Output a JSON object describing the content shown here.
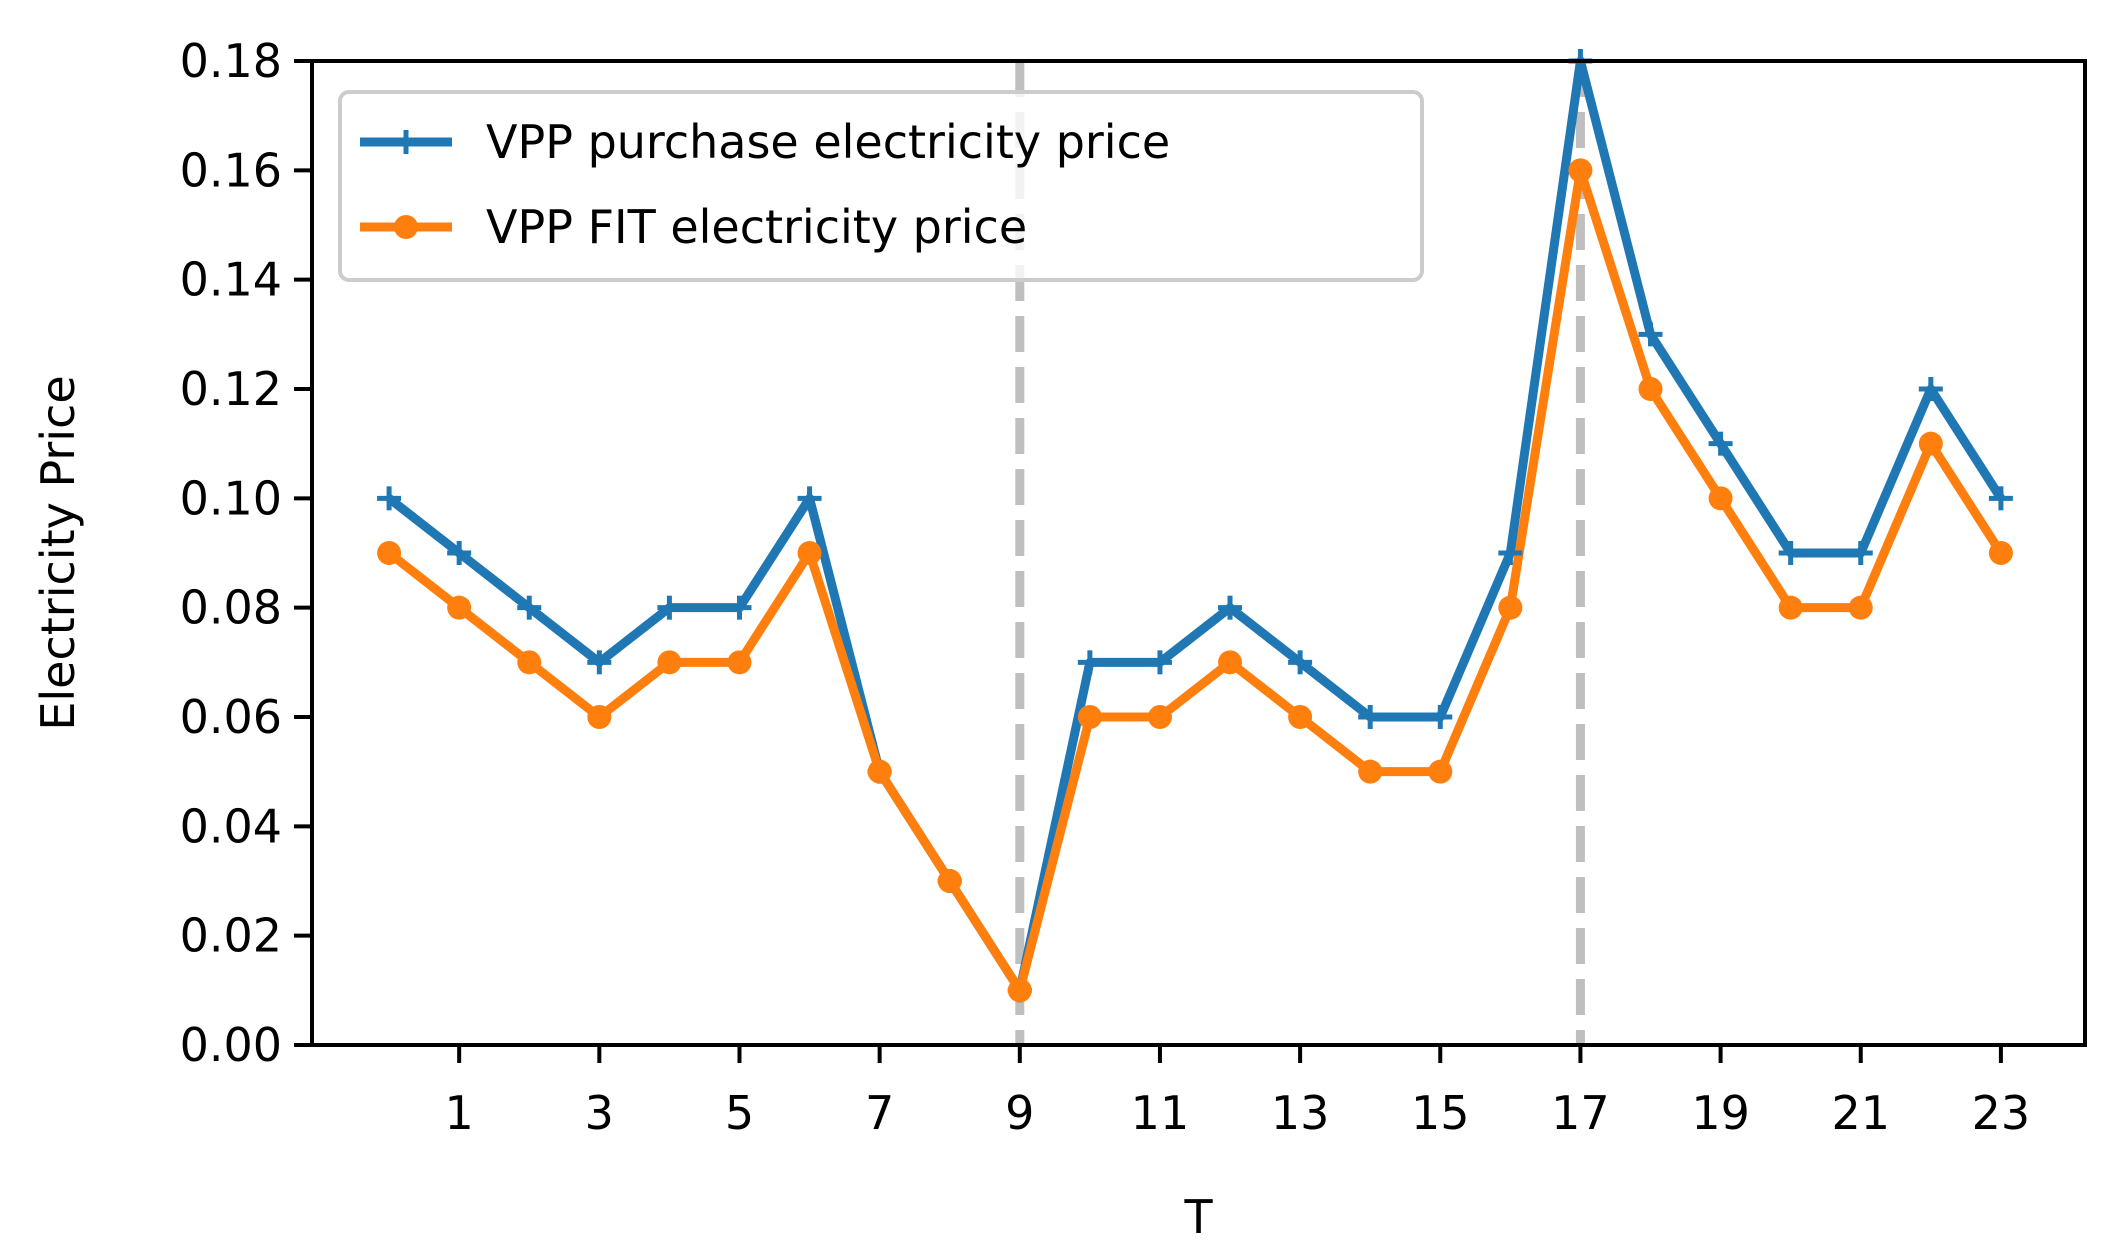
{
  "chart_data": {
    "type": "line",
    "title": "",
    "xlabel": "T",
    "ylabel": "Electricity Price",
    "x": [
      0,
      1,
      2,
      3,
      4,
      5,
      6,
      7,
      8,
      9,
      10,
      11,
      12,
      13,
      14,
      15,
      16,
      17,
      18,
      19,
      20,
      21,
      22,
      23
    ],
    "xticks": [
      1,
      3,
      5,
      7,
      9,
      11,
      13,
      15,
      17,
      19,
      21,
      23
    ],
    "xlim": [
      -1.1,
      24.2
    ],
    "ylim": [
      0,
      0.18
    ],
    "yticks": [
      "0.00",
      "0.02",
      "0.04",
      "0.06",
      "0.08",
      "0.10",
      "0.12",
      "0.14",
      "0.16",
      "0.18"
    ],
    "grid": false,
    "legend_position": "upper-left",
    "vertical_lines": [
      9,
      17
    ],
    "series": [
      {
        "name": "VPP purchase electricity price",
        "color": "#1f77b4",
        "marker": "plus",
        "values": [
          0.1,
          0.09,
          0.08,
          0.07,
          0.08,
          0.08,
          0.1,
          0.05,
          0.03,
          0.01,
          0.07,
          0.07,
          0.08,
          0.07,
          0.06,
          0.06,
          0.09,
          0.18,
          0.13,
          0.11,
          0.09,
          0.09,
          0.12,
          0.1
        ]
      },
      {
        "name": "VPP FIT electricity price",
        "color": "#ff7f0e",
        "marker": "circle",
        "values": [
          0.09,
          0.08,
          0.07,
          0.06,
          0.07,
          0.07,
          0.09,
          0.05,
          0.03,
          0.01,
          0.06,
          0.06,
          0.07,
          0.06,
          0.05,
          0.05,
          0.08,
          0.16,
          0.12,
          0.1,
          0.08,
          0.08,
          0.11,
          0.09
        ]
      }
    ],
    "vline_color": "#bfbfbf"
  }
}
